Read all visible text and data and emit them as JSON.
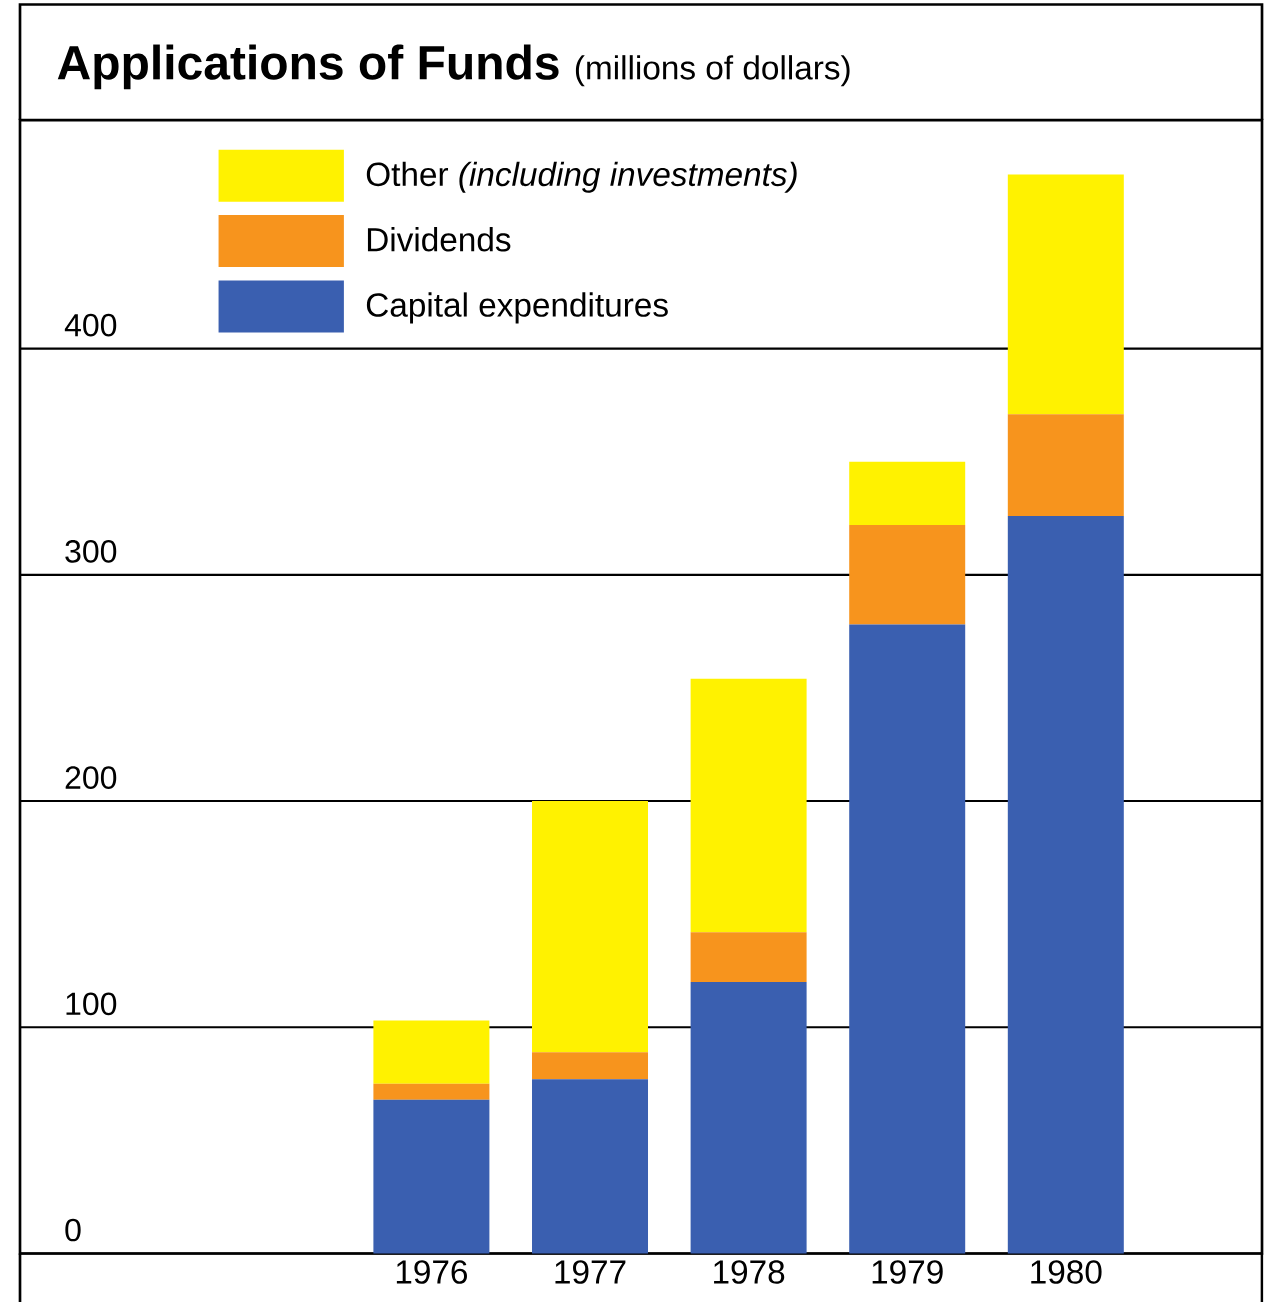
{
  "chart_data": {
    "type": "bar",
    "stacked": true,
    "title": "Applications of Funds",
    "subtitle": "(millions of dollars)",
    "categories": [
      "1976",
      "1977",
      "1978",
      "1979",
      "1980"
    ],
    "series": [
      {
        "name": "Capital expenditures",
        "color": "#3a5fb0",
        "values": [
          68,
          77,
          120,
          278,
          326
        ]
      },
      {
        "name": "Dividends",
        "color": "#f7941d",
        "values": [
          7,
          12,
          22,
          44,
          45
        ]
      },
      {
        "name": "Other *(including investments)*",
        "color": "#fff200",
        "values": [
          28,
          111,
          112,
          28,
          106
        ]
      }
    ],
    "ylim": [
      0,
      501
    ],
    "yticks": [
      0,
      100,
      200,
      300,
      400
    ],
    "grid": "y",
    "legend": "top left"
  }
}
